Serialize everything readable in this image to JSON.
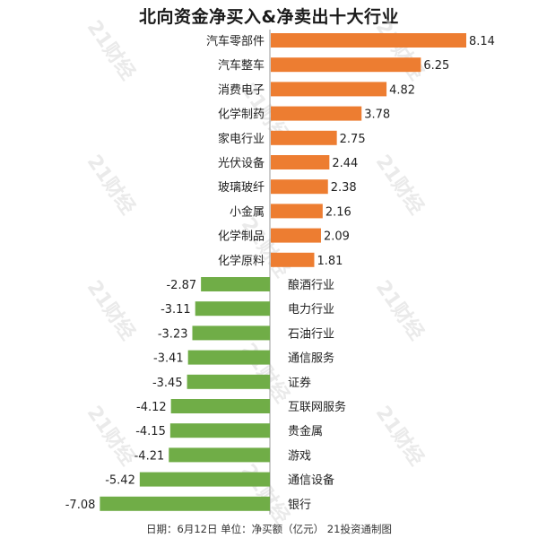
{
  "chart_data": {
    "type": "bar",
    "orientation": "horizontal",
    "title": "北向资金净买入&净卖出十大行业",
    "categories": [
      "汽车零部件",
      "汽车整车",
      "消费电子",
      "化学制药",
      "家电行业",
      "光伏设备",
      "玻璃玻纤",
      "小金属",
      "化学制品",
      "化学原料",
      "酿酒行业",
      "电力行业",
      "石油行业",
      "通信服务",
      "证券",
      "互联网服务",
      "贵金属",
      "游戏",
      "通信设备",
      "银行"
    ],
    "values": [
      8.14,
      6.25,
      4.82,
      3.78,
      2.75,
      2.44,
      2.38,
      2.16,
      2.09,
      1.81,
      -2.87,
      -3.11,
      -3.23,
      -3.41,
      -3.45,
      -4.12,
      -4.15,
      -4.21,
      -5.42,
      -7.08
    ],
    "value_labels": [
      "8.14",
      "6.25",
      "4.82",
      "3.78",
      "2.75",
      "2.44",
      "2.38",
      "2.16",
      "2.09",
      "1.81",
      "-2.87",
      "-3.11",
      "-3.23",
      "-3.41",
      "-3.45",
      "-4.12",
      "-4.15",
      "-4.21",
      "-5.42",
      "-7.08"
    ],
    "xlim": [
      -7.08,
      8.14
    ],
    "grid": false,
    "colors": {
      "positive": "#ED7D31",
      "negative": "#70AD47",
      "axis": "#999999"
    },
    "footer": "日期：6月12日 单位：净买额（亿元） 21投资通制图",
    "watermark": "21财经"
  }
}
